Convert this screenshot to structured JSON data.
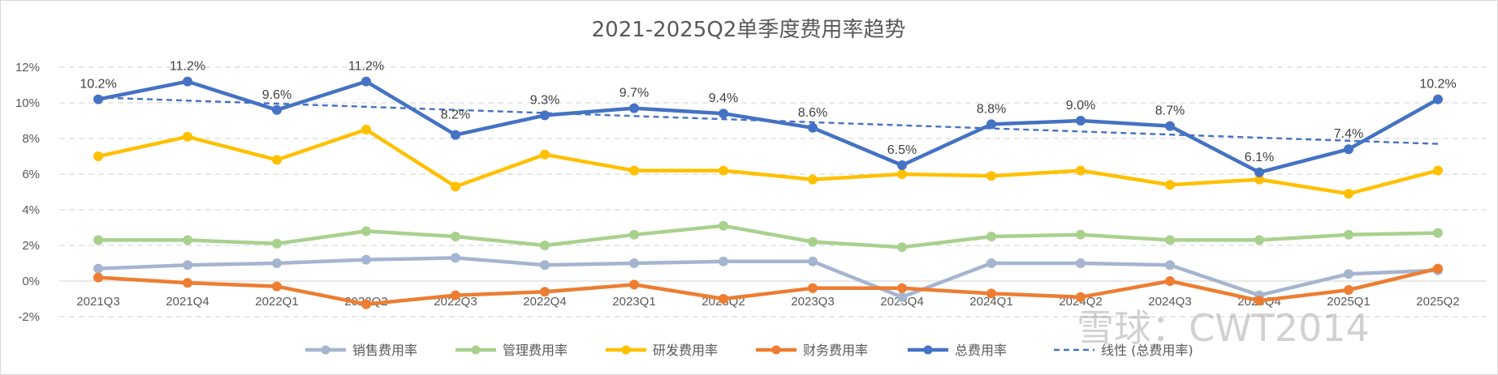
{
  "chart_data": {
    "type": "line",
    "title": "2021-2025Q2单季度费用率趋势",
    "categories": [
      "2021Q3",
      "2021Q4",
      "2022Q1",
      "2022Q2",
      "2022Q3",
      "2022Q4",
      "2023Q1",
      "2023Q2",
      "2023Q3",
      "2023Q4",
      "2024Q1",
      "2024Q2",
      "2024Q3",
      "2024Q4",
      "2025Q1",
      "2025Q2"
    ],
    "ylim": [
      -2,
      12
    ],
    "yticks": [
      -2,
      0,
      2,
      4,
      6,
      8,
      10,
      12
    ],
    "ytick_labels": [
      "-2%",
      "0%",
      "2%",
      "4%",
      "6%",
      "8%",
      "10%",
      "12%"
    ],
    "grid": true,
    "legend_position": "bottom",
    "series": [
      {
        "name": "销售费用率",
        "color": "#a5b5d0",
        "values": [
          0.7,
          0.9,
          1.0,
          1.2,
          1.3,
          0.9,
          1.0,
          1.1,
          1.1,
          -0.9,
          1.0,
          1.0,
          0.9,
          -0.8,
          0.4,
          0.6
        ]
      },
      {
        "name": "管理费用率",
        "color": "#a9d18e",
        "values": [
          2.3,
          2.3,
          2.1,
          2.8,
          2.5,
          2.0,
          2.6,
          3.1,
          2.2,
          1.9,
          2.5,
          2.6,
          2.3,
          2.3,
          2.6,
          2.7
        ]
      },
      {
        "name": "研发费用率",
        "color": "#ffc000",
        "values": [
          7.0,
          8.1,
          6.8,
          8.5,
          5.3,
          7.1,
          6.2,
          6.2,
          5.7,
          6.0,
          5.9,
          6.2,
          5.4,
          5.7,
          4.9,
          6.2
        ]
      },
      {
        "name": "财务费用率",
        "color": "#ed7d31",
        "values": [
          0.2,
          -0.1,
          -0.3,
          -1.3,
          -0.8,
          -0.6,
          -0.2,
          -1.0,
          -0.4,
          -0.4,
          -0.7,
          -0.9,
          0.0,
          -1.1,
          -0.5,
          0.7
        ]
      },
      {
        "name": "总费用率",
        "color": "#4472c4",
        "values": [
          10.2,
          11.2,
          9.6,
          11.2,
          8.2,
          9.3,
          9.7,
          9.4,
          8.6,
          6.5,
          8.8,
          9.0,
          8.7,
          6.1,
          7.4,
          10.2
        ],
        "data_labels": [
          "10.2%",
          "11.2%",
          "9.6%",
          "11.2%",
          "8.2%",
          "9.3%",
          "9.7%",
          "9.4%",
          "8.6%",
          "6.5%",
          "8.8%",
          "9.0%",
          "8.7%",
          "6.1%",
          "7.4%",
          "10.2%"
        ]
      }
    ],
    "trendline": {
      "name": "线性 (总费用率)",
      "color": "#4472c4",
      "style": "dashed",
      "start": 10.3,
      "end": 7.7
    }
  },
  "watermark": "雪球：CWT2014"
}
